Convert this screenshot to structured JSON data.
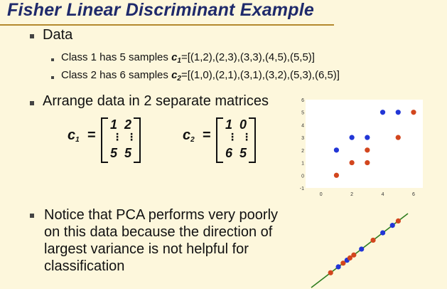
{
  "title": "Fisher Linear Discriminant Example",
  "bullets": {
    "data": "Data",
    "class1_prefix": "Class 1 has 5 samples ",
    "class1_var": "c",
    "class1_sub": "1",
    "class1_value": "=[(1,2),(2,3),(3,3),(4,5),(5,5)]",
    "class2_prefix": "Class 2 has 6 samples ",
    "class2_var": "c",
    "class2_sub": "2",
    "class2_value": "=[(1,0),(2,1),(3,1),(3,2),(5,3),(6,5)]",
    "arrange": "Arrange data in 2 separate matrices",
    "notice": "Notice that PCA performs very poorly on this data because the direction of largest variance is not helpful for classification"
  },
  "matrices": [
    {
      "label": "c",
      "sub": "1",
      "equals": "=",
      "top": [
        "1",
        "2"
      ],
      "bottom": [
        "5",
        "5"
      ],
      "dots": "⋮"
    },
    {
      "label": "c",
      "sub": "2",
      "equals": "=",
      "top": [
        "1",
        "0"
      ],
      "bottom": [
        "6",
        "5"
      ],
      "dots": "⋮"
    }
  ],
  "chart_data": {
    "type": "scatter",
    "xlim": [
      -1,
      6.6
    ],
    "ylim": [
      -1,
      6
    ],
    "xticks": [
      "0",
      "2",
      "4",
      "6"
    ],
    "yticks": [
      "-1",
      "0",
      "1",
      "2",
      "3",
      "4",
      "5",
      "6"
    ],
    "series": [
      {
        "color": "#2236d6",
        "points": [
          [
            1,
            2
          ],
          [
            2,
            3
          ],
          [
            3,
            3
          ],
          [
            4,
            5
          ],
          [
            5,
            5
          ]
        ]
      },
      {
        "color": "#d2461e",
        "points": [
          [
            1,
            0
          ],
          [
            2,
            1
          ],
          [
            3,
            1
          ],
          [
            3,
            2
          ],
          [
            5,
            3
          ],
          [
            6,
            5
          ]
        ]
      }
    ]
  },
  "projection": {
    "line_color": "#2e7d1e",
    "blue": "#2236d6",
    "red": "#d2461e"
  }
}
